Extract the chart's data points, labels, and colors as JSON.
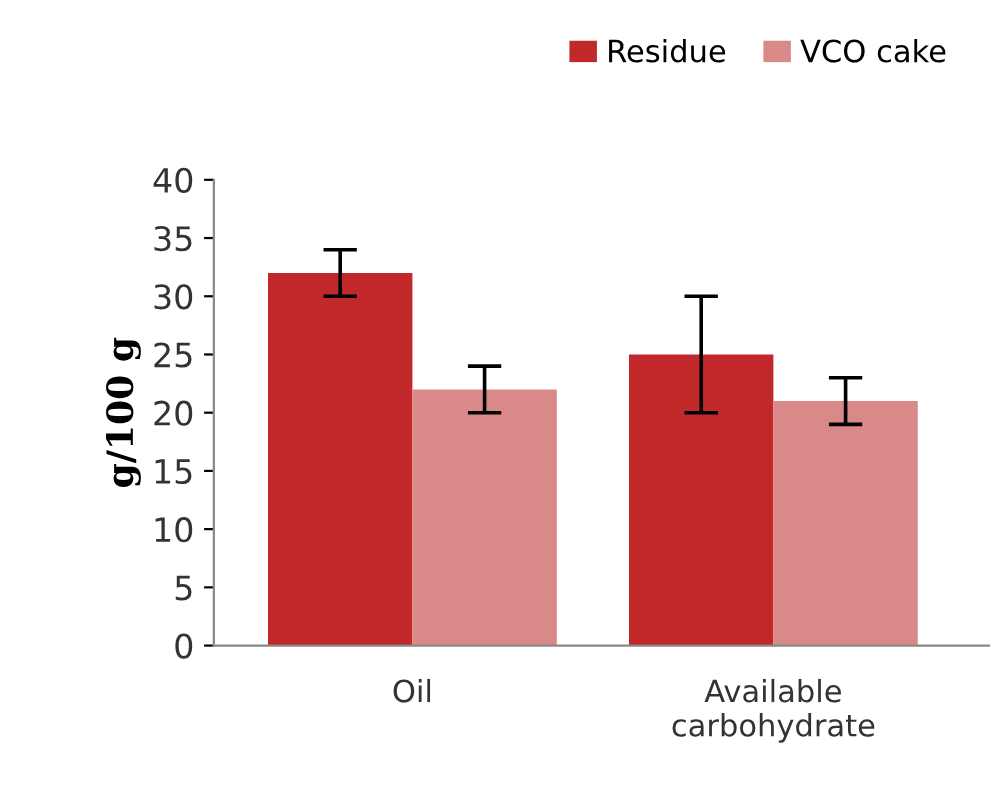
{
  "chart_data": {
    "type": "bar",
    "ylabel": "g/100 g",
    "categories": [
      "Oil",
      "Available\ncarbohydrate"
    ],
    "series": [
      {
        "name": "Residue",
        "color": "#c0282a",
        "values": [
          32,
          25
        ],
        "errors": [
          2,
          5
        ]
      },
      {
        "name": "VCO cake",
        "color": "#d98a88",
        "values": [
          22,
          21
        ],
        "errors": [
          2,
          2
        ]
      }
    ],
    "ylim": [
      0,
      40
    ],
    "yticks": [
      0,
      5,
      10,
      15,
      20,
      25,
      30,
      35,
      40
    ],
    "grid": false,
    "legend": "top right"
  }
}
